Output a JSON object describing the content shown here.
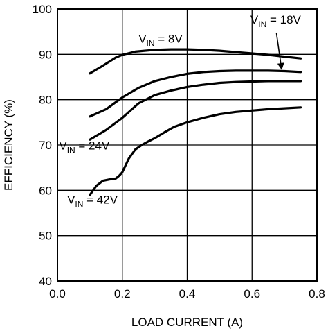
{
  "chart_data": {
    "type": "line",
    "title": "",
    "xlabel": "LOAD CURRENT (A)",
    "ylabel": "EFFICIENCY (%)",
    "xlim": [
      0.0,
      0.8
    ],
    "ylim": [
      40,
      100
    ],
    "x_ticks": [
      0.0,
      0.2,
      0.4,
      0.6,
      0.8
    ],
    "x_tick_labels": [
      "0.0",
      "0.2",
      "0.4",
      "0.6",
      "0.8"
    ],
    "y_ticks": [
      40,
      50,
      60,
      70,
      80,
      90,
      100
    ],
    "y_tick_labels": [
      "40",
      "50",
      "60",
      "70",
      "80",
      "90",
      "100"
    ],
    "grid": true,
    "series": [
      {
        "label_main": "V",
        "label_sub": "IN",
        "label_rest": " = 8V",
        "label_at": [
          0.25,
          92.6
        ],
        "x": [
          0.1,
          0.14,
          0.18,
          0.2,
          0.24,
          0.3,
          0.35,
          0.4,
          0.45,
          0.5,
          0.55,
          0.6,
          0.65,
          0.7,
          0.75
        ],
        "y": [
          85.8,
          87.5,
          89.3,
          89.9,
          90.6,
          91.0,
          91.1,
          91.1,
          91.0,
          90.8,
          90.5,
          90.2,
          89.9,
          89.5,
          89.1
        ]
      },
      {
        "label_main": "V",
        "label_sub": "IN",
        "label_rest": " = 18V",
        "label_at": [
          0.595,
          96.8
        ],
        "arrow_from": [
          0.675,
          94.8
        ],
        "arrow_to": [
          0.69,
          87.3
        ],
        "x": [
          0.1,
          0.15,
          0.2,
          0.25,
          0.3,
          0.35,
          0.4,
          0.45,
          0.5,
          0.55,
          0.6,
          0.65,
          0.7,
          0.75
        ],
        "y": [
          76.3,
          77.9,
          80.5,
          82.6,
          84.1,
          85.0,
          85.7,
          86.1,
          86.3,
          86.4,
          86.4,
          86.4,
          86.3,
          86.1
        ]
      },
      {
        "label_main": "V",
        "label_sub": "IN",
        "label_rest": " = 24V",
        "label_at": [
          0.005,
          69.0
        ],
        "x": [
          0.1,
          0.15,
          0.2,
          0.25,
          0.3,
          0.35,
          0.4,
          0.45,
          0.5,
          0.55,
          0.6,
          0.65,
          0.7,
          0.75
        ],
        "y": [
          71.2,
          73.3,
          76.0,
          79.2,
          81.0,
          82.0,
          82.8,
          83.3,
          83.7,
          83.9,
          84.0,
          84.1,
          84.1,
          84.1
        ]
      },
      {
        "label_main": "V",
        "label_sub": "IN",
        "label_rest": " = 42V",
        "label_at": [
          0.03,
          57.1
        ],
        "x": [
          0.1,
          0.12,
          0.14,
          0.16,
          0.18,
          0.19,
          0.2,
          0.22,
          0.24,
          0.26,
          0.28,
          0.3,
          0.33,
          0.36,
          0.4,
          0.45,
          0.5,
          0.55,
          0.6,
          0.65,
          0.7,
          0.75
        ],
        "y": [
          59.0,
          61.0,
          62.1,
          62.4,
          62.6,
          63.2,
          64.0,
          67.0,
          69.0,
          70.0,
          70.8,
          71.5,
          72.8,
          74.0,
          75.0,
          76.0,
          76.8,
          77.3,
          77.6,
          77.9,
          78.1,
          78.3
        ]
      }
    ]
  }
}
